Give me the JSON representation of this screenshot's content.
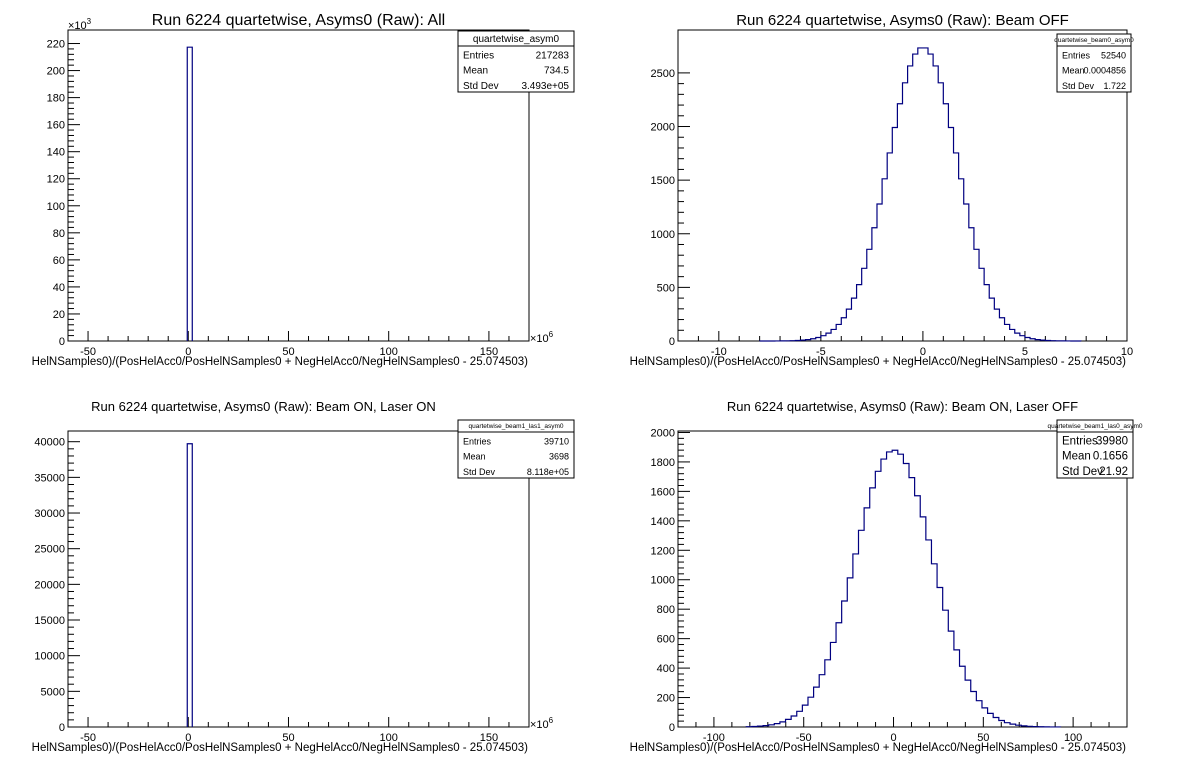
{
  "chart_data": [
    {
      "type": "histogram",
      "title": "Run 6224 quartetwise, Asyms0 (Raw): All",
      "xlabel": "HelNSamples0)/(PosHelAcc0/PosHelNSamples0 + NegHelAcc0/NegHelNSamples0 - 25.074503)",
      "ylabel": "",
      "x_multiplier": "10^6",
      "y_multiplier": "10^3",
      "xlim": [
        -60,
        170
      ],
      "ylim": [
        0,
        230
      ],
      "xticks": [
        -50,
        0,
        50,
        100,
        150
      ],
      "yticks": [
        0,
        20,
        40,
        60,
        80,
        100,
        120,
        140,
        160,
        180,
        200,
        220
      ],
      "bins": [
        {
          "x0": -0.5,
          "x1": 2.0,
          "y": 217.3
        }
      ],
      "stats": {
        "name": "quartetwise_asym0",
        "rows": [
          [
            "Entries",
            "217283"
          ],
          [
            "Mean",
            "734.5"
          ],
          [
            "Std Dev",
            "3.493e+05"
          ]
        ]
      }
    },
    {
      "type": "histogram",
      "title": "Run 6224 quartetwise, Asyms0 (Raw): Beam OFF",
      "xlabel": "HelNSamples0)/(PosHelAcc0/PosHelNSamples0 + NegHelAcc0/NegHelNSamples0 - 25.074503)",
      "ylabel": "",
      "x_multiplier": "",
      "y_multiplier": "",
      "xlim": [
        -12,
        10
      ],
      "ylim": [
        0,
        2900
      ],
      "xticks": [
        -10,
        -5,
        0,
        5,
        10
      ],
      "yticks": [
        0,
        500,
        1000,
        1500,
        2000,
        2500
      ],
      "gauss": {
        "mean": 0,
        "sigma": 1.72,
        "amp": 2740,
        "from": -8,
        "to": 7.6,
        "step": 0.25
      },
      "stats": {
        "name": "quartetwise_beam0_asym0",
        "rows": [
          [
            "Entries",
            "52540"
          ],
          [
            "Mean",
            "0.0004856"
          ],
          [
            "Std Dev",
            "1.722"
          ]
        ]
      }
    },
    {
      "type": "histogram",
      "title": "Run 6224 quartetwise, Asyms0 (Raw): Beam ON, Laser ON",
      "xlabel": "HelNSamples0)/(PosHelAcc0/PosHelNSamples0 + NegHelAcc0/NegHelNSamples0 - 25.074503)",
      "ylabel": "",
      "x_multiplier": "10^6",
      "y_multiplier": "",
      "xlim": [
        -60,
        170
      ],
      "ylim": [
        0,
        41500
      ],
      "xticks": [
        -50,
        0,
        50,
        100,
        150
      ],
      "yticks": [
        0,
        5000,
        10000,
        15000,
        20000,
        25000,
        30000,
        35000,
        40000
      ],
      "bins": [
        {
          "x0": -0.5,
          "x1": 2.0,
          "y": 39710
        }
      ],
      "stats": {
        "name": "quartetwise_beam1_las1_asym0",
        "rows": [
          [
            "Entries",
            "39710"
          ],
          [
            "Mean",
            "3698"
          ],
          [
            "Std Dev",
            "8.118e+05"
          ]
        ]
      }
    },
    {
      "type": "histogram",
      "title": "Run 6224 quartetwise, Asyms0 (Raw): Beam ON, Laser OFF",
      "xlabel": "HelNSamples0)/(PosHelAcc0/PosHelNSamples0 + NegHelAcc0/NegHelNSamples0 - 25.074503)",
      "ylabel": "",
      "x_multiplier": "",
      "y_multiplier": "",
      "xlim": [
        -120,
        130
      ],
      "ylim": [
        0,
        2010
      ],
      "xticks": [
        -100,
        -50,
        0,
        50,
        100
      ],
      "yticks": [
        0,
        200,
        400,
        600,
        800,
        1000,
        1200,
        1400,
        1600,
        1800,
        2000
      ],
      "gauss": {
        "mean": 0.17,
        "sigma": 21.9,
        "amp": 1880,
        "from": -82,
        "to": 92,
        "step": 3.125
      },
      "stats": {
        "name": "quartetwise_beam1_las0_asym0",
        "rows": [
          [
            "Entries",
            "39980"
          ],
          [
            "Mean",
            "0.1656"
          ],
          [
            "Std Dev",
            "21.92"
          ]
        ]
      }
    }
  ]
}
